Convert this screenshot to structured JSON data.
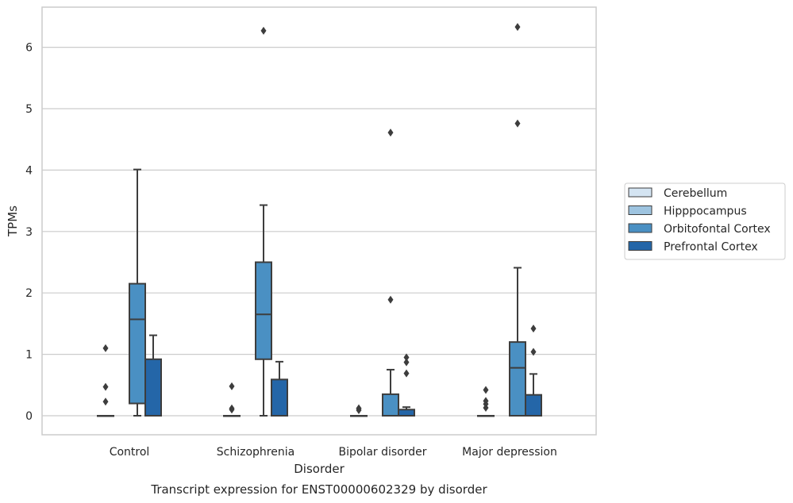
{
  "chart_data": {
    "type": "boxplot",
    "title": "",
    "caption": "Transcript expression for ENST00000602329 by disorder",
    "xlabel": "Disorder",
    "ylabel": "TPMs",
    "ylim": [
      -0.3,
      6.65
    ],
    "yticks": [
      0,
      1,
      2,
      3,
      4,
      5,
      6
    ],
    "grid": true,
    "legend_position": "right",
    "categories": [
      "Control",
      "Schizophrenia",
      "Bipolar disorder",
      "Major depression"
    ],
    "series": [
      {
        "name": "Cerebellum",
        "color": "#d4e4f2",
        "boxes": [
          {
            "q1": 0,
            "median": 0,
            "q3": 0,
            "whisker_low": 0,
            "whisker_high": 0,
            "outliers": [
              0.23,
              0.47,
              1.1
            ]
          },
          {
            "q1": 0,
            "median": 0,
            "q3": 0,
            "whisker_low": 0,
            "whisker_high": 0,
            "outliers": [
              0.1,
              0.12,
              0.48
            ]
          },
          {
            "q1": 0,
            "median": 0,
            "q3": 0,
            "whisker_low": 0,
            "whisker_high": 0,
            "outliers": [
              0.09,
              0.12,
              0.12
            ]
          },
          {
            "q1": 0,
            "median": 0,
            "q3": 0,
            "whisker_low": 0,
            "whisker_high": 0,
            "outliers": [
              0.13,
              0.19,
              0.24,
              0.42
            ]
          }
        ]
      },
      {
        "name": "Hipppocampus",
        "color": "#9ec4e0",
        "boxes": [
          null,
          null,
          null,
          null
        ]
      },
      {
        "name": "Orbitofontal Cortex",
        "color": "#4a90c3",
        "boxes": [
          {
            "q1": 0.2,
            "median": 1.57,
            "q3": 2.15,
            "whisker_low": 0,
            "whisker_high": 4.01,
            "outliers": []
          },
          {
            "q1": 0.92,
            "median": 1.65,
            "q3": 2.5,
            "whisker_low": 0,
            "whisker_high": 3.43,
            "outliers": [
              6.27
            ]
          },
          {
            "q1": 0,
            "median": 0,
            "q3": 0.35,
            "whisker_low": 0,
            "whisker_high": 0.75,
            "outliers": [
              1.89,
              4.61
            ]
          },
          {
            "q1": 0,
            "median": 0.78,
            "q3": 1.2,
            "whisker_low": 0,
            "whisker_high": 2.41,
            "outliers": [
              4.76,
              6.33
            ]
          }
        ]
      },
      {
        "name": "Prefrontal Cortex",
        "color": "#2466a8",
        "boxes": [
          {
            "q1": 0,
            "median": 0,
            "q3": 0.92,
            "whisker_low": 0,
            "whisker_high": 1.31,
            "outliers": []
          },
          {
            "q1": 0,
            "median": 0,
            "q3": 0.59,
            "whisker_low": 0,
            "whisker_high": 0.88,
            "outliers": []
          },
          {
            "q1": 0,
            "median": 0,
            "q3": 0.1,
            "whisker_low": 0,
            "whisker_high": 0.14,
            "outliers": [
              0.69,
              0.87,
              0.95
            ]
          },
          {
            "q1": 0,
            "median": 0,
            "q3": 0.34,
            "whisker_low": 0,
            "whisker_high": 0.68,
            "outliers": [
              1.04,
              1.42
            ]
          }
        ]
      }
    ]
  },
  "style": {
    "line_color": "#3d3d3d",
    "grid_color": "#cccccc",
    "frame_color": "#cccccc",
    "text_color": "#262626"
  }
}
